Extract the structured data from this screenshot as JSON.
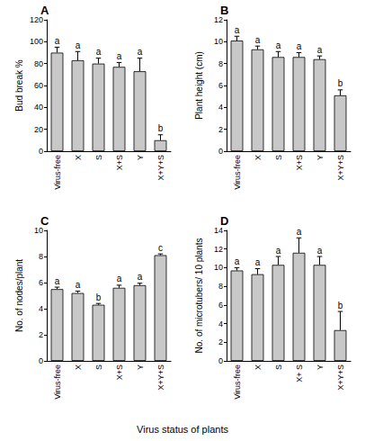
{
  "xlabel": "Virus status of plants",
  "chart_data": [
    {
      "type": "bar",
      "title": "A",
      "ylabel": "Bud break %",
      "categories": [
        "Virus-free",
        "X",
        "S",
        "X+S",
        "Y",
        "X+Y+S"
      ],
      "values": [
        90,
        83,
        80,
        77,
        73,
        10
      ],
      "errors": [
        5,
        8,
        5,
        4,
        12,
        5
      ],
      "annotations": [
        "a",
        "a",
        "a",
        "a",
        "a",
        "b"
      ],
      "color": "#c8c8c8",
      "ylim": [
        0,
        120
      ],
      "yticks": [
        0,
        20,
        40,
        60,
        80,
        100,
        120
      ],
      "grid": false
    },
    {
      "type": "bar",
      "title": "B",
      "ylabel": "Plant height (cm)",
      "categories": [
        "Virus-free",
        "X",
        "S",
        "X+S",
        "Y",
        "X+Y+S"
      ],
      "values": [
        10.1,
        9.3,
        8.6,
        8.6,
        8.4,
        5.1
      ],
      "errors": [
        0.4,
        0.3,
        0.5,
        0.4,
        0.3,
        0.5
      ],
      "annotations": [
        "a",
        "a",
        "a",
        "a",
        "a",
        "b"
      ],
      "color": "#c8c8c8",
      "ylim": [
        0,
        12
      ],
      "yticks": [
        0,
        2,
        4,
        6,
        8,
        10,
        12
      ],
      "grid": false
    },
    {
      "type": "bar",
      "title": "C",
      "ylabel": "No. of nodes/plant",
      "categories": [
        "Virus-free",
        "X",
        "S",
        "X+S",
        "Y",
        "X+Y+S"
      ],
      "values": [
        5.5,
        5.2,
        4.3,
        5.6,
        5.8,
        8.1
      ],
      "errors": [
        0.15,
        0.15,
        0.1,
        0.2,
        0.15,
        0.1
      ],
      "annotations": [
        "a",
        "a",
        "b",
        "a",
        "a",
        "c"
      ],
      "color": "#c8c8c8",
      "ylim": [
        0,
        10
      ],
      "yticks": [
        0,
        2,
        4,
        6,
        8,
        10
      ],
      "grid": false
    },
    {
      "type": "bar",
      "title": "D",
      "ylabel": "No. of microtubers/ 10 plants",
      "categories": [
        "Virus-free",
        "X",
        "S",
        "X+ S",
        "Y",
        "X+Y+S"
      ],
      "values": [
        9.7,
        9.3,
        10.3,
        11.6,
        10.3,
        3.3
      ],
      "errors": [
        0.3,
        0.6,
        0.9,
        1.6,
        0.9,
        2.0
      ],
      "annotations": [
        "a",
        "a",
        "a",
        "a",
        "a",
        "b"
      ],
      "color": "#c8c8c8",
      "ylim": [
        0,
        14
      ],
      "yticks": [
        0,
        2,
        4,
        6,
        8,
        10,
        12,
        14
      ],
      "grid": false
    }
  ]
}
